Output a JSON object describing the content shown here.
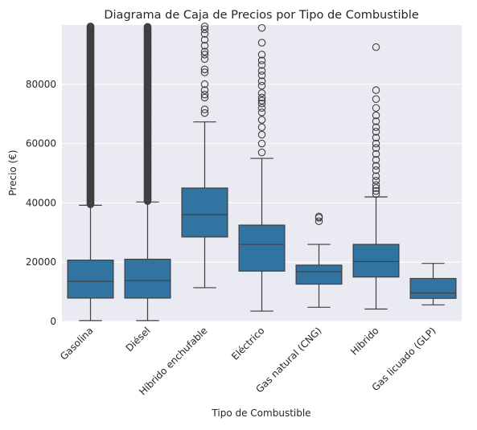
{
  "chart_data": {
    "type": "box",
    "title": "Diagrama de Caja de Precios por Tipo de Combustible",
    "xlabel": "Tipo de Combustible",
    "ylabel": "Precio (€)",
    "ylim": [
      0,
      100000
    ],
    "yticks": [
      0,
      20000,
      40000,
      60000,
      80000
    ],
    "grid": true,
    "legend": "none",
    "colors": {
      "background": "#eaeaf2",
      "box_fill": "#3274a1",
      "line": "#3f3f3f",
      "grid": "#ffffff"
    },
    "categories": [
      "Gasolina",
      "Diésel",
      "Híbrido enchufable",
      "Eléctrico",
      "Gas natural (CNG)",
      "Híbrido",
      "Gas licuado (GLP)"
    ],
    "boxes": [
      {
        "category": "Gasolina",
        "whisker_low": 300,
        "q1": 7900,
        "median": 13500,
        "q3": 20700,
        "whisker_high": 39200,
        "outliers_dense": [
          39500,
          99500
        ],
        "outliers": []
      },
      {
        "category": "Diésel",
        "whisker_low": 300,
        "q1": 7900,
        "median": 13800,
        "q3": 21000,
        "whisker_high": 40300,
        "outliers_dense": [
          40600,
          99500
        ],
        "outliers": []
      },
      {
        "category": "Híbrido enchufable",
        "whisker_low": 11400,
        "q1": 28500,
        "median": 36000,
        "q3": 45000,
        "whisker_high": 67300,
        "outliers_dense": [],
        "outliers": [
          70300,
          71500,
          75500,
          76500,
          78000,
          80000,
          84000,
          85000,
          88500,
          90000,
          91000,
          93000,
          95000,
          97000,
          98500,
          99500
        ]
      },
      {
        "category": "Eléctrico",
        "whisker_low": 3500,
        "q1": 17000,
        "median": 26000,
        "q3": 32500,
        "whisker_high": 55000,
        "outliers": [
          57000,
          60000,
          63000,
          65500,
          68000,
          70500,
          72000,
          73500,
          74500,
          75500,
          77000,
          79500,
          81000,
          83000,
          84500,
          86500,
          88000,
          90000,
          94000,
          99000
        ]
      },
      {
        "category": "Gas natural (CNG)",
        "whisker_low": 4800,
        "q1": 12600,
        "median": 16800,
        "q3": 19000,
        "whisker_high": 26000,
        "outliers": [
          33800,
          35000,
          35400
        ]
      },
      {
        "category": "Híbrido",
        "whisker_low": 4200,
        "q1": 15000,
        "median": 20200,
        "q3": 26000,
        "whisker_high": 42000,
        "outliers": [
          43000,
          44000,
          45000,
          46000,
          47500,
          49000,
          51000,
          52500,
          54500,
          56500,
          58500,
          60000,
          62000,
          64000,
          65500,
          67500,
          69500,
          72000,
          75000,
          78000,
          92500
        ]
      },
      {
        "category": "Gas licuado (GLP)",
        "whisker_low": 5600,
        "q1": 7800,
        "median": 9600,
        "q3": 14500,
        "whisker_high": 19600,
        "outliers": []
      }
    ]
  }
}
